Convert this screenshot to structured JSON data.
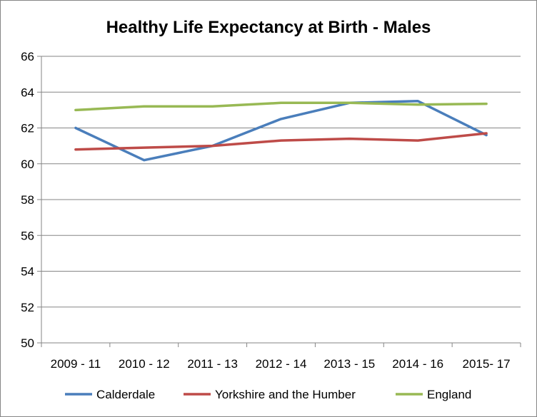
{
  "chart_data": {
    "type": "line",
    "title": "Healthy Life Expectancy at Birth - Males",
    "xlabel": "",
    "ylabel": "",
    "categories": [
      "2009 - 11",
      "2010 - 12",
      "2011 - 13",
      "2012 - 14",
      "2013 - 15",
      "2014 - 16",
      "2015- 17"
    ],
    "ylim": [
      50,
      66
    ],
    "yticks": [
      50,
      52,
      54,
      56,
      58,
      60,
      62,
      64,
      66
    ],
    "grid": true,
    "legend": "bottom",
    "series": [
      {
        "name": "Calderdale",
        "color": "#4a7ebb",
        "values": [
          62.0,
          60.2,
          61.0,
          62.5,
          63.4,
          63.5,
          61.6
        ]
      },
      {
        "name": "Yorkshire and the Humber",
        "color": "#be4b48",
        "values": [
          60.8,
          60.9,
          61.0,
          61.3,
          61.4,
          61.3,
          61.7
        ]
      },
      {
        "name": "England",
        "color": "#98b954",
        "values": [
          63.0,
          63.2,
          63.2,
          63.4,
          63.4,
          63.3,
          63.35
        ]
      }
    ]
  }
}
